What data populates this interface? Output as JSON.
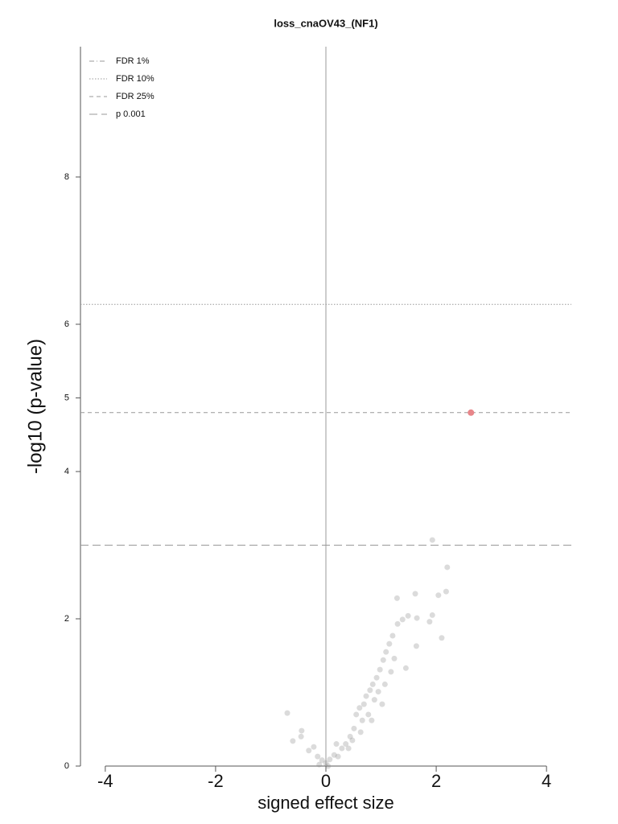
{
  "chart_data": {
    "type": "scatter",
    "title": "loss_cnaOV43_(NF1)",
    "xlabel": "signed effect size",
    "ylabel": "-log10 (p-value)",
    "xlim": [
      -4.45,
      4.45
    ],
    "ylim": [
      0,
      9.77
    ],
    "xticks": [
      -4,
      -2,
      0,
      2,
      4
    ],
    "yticks": [
      0,
      2,
      4,
      5,
      6,
      8
    ],
    "color": "#888888",
    "x": [
      -0.7,
      -0.44,
      -0.45,
      -0.6,
      -0.31,
      -0.22,
      -0.15,
      -0.07,
      0,
      0.07,
      0.15,
      0.22,
      0.29,
      0.36,
      0.44,
      0.51,
      0.55,
      0.61,
      0.69,
      0.73,
      0.8,
      0.85,
      0.92,
      0.98,
      1.04,
      1.09,
      1.15,
      1.21,
      1.3,
      1.29,
      1.39,
      1.49,
      1.62,
      1.65,
      1.64,
      1.45,
      1.93,
      1.88,
      1.93,
      2.04,
      2.2,
      2.18,
      2.1,
      0.04,
      -0.12,
      0.19,
      0.41,
      0.66,
      0.77,
      0.88,
      0.95,
      1.07,
      1.18,
      0.83,
      0.63,
      0.48,
      1.02,
      1.24
    ],
    "y": [
      0.72,
      0.48,
      0.4,
      0.34,
      0.21,
      0.26,
      0.13,
      0.08,
      0.04,
      0.09,
      0.15,
      0.13,
      0.24,
      0.3,
      0.4,
      0.51,
      0.7,
      0.79,
      0.84,
      0.95,
      1.03,
      1.11,
      1.2,
      1.31,
      1.44,
      1.55,
      1.66,
      1.77,
      1.93,
      2.28,
      1.99,
      2.04,
      2.34,
      2.01,
      1.63,
      1.33,
      3.07,
      1.96,
      2.05,
      2.32,
      2.7,
      2.37,
      1.74,
      0.0,
      0.02,
      0.3,
      0.24,
      0.62,
      0.7,
      0.9,
      1.01,
      1.11,
      1.28,
      0.62,
      0.46,
      0.35,
      0.84,
      1.46
    ],
    "highlight": {
      "x": 2.63,
      "y": 4.8,
      "color": "#e8868a"
    },
    "reference_lines": [
      {
        "name": "FDR 1%",
        "value": null,
        "style": "dashdot"
      },
      {
        "name": "FDR 10%",
        "value": 6.27,
        "style": "dotted"
      },
      {
        "name": "FDR 25%",
        "value": 4.8,
        "style": "dashed"
      },
      {
        "name": "p 0.001",
        "value": 3,
        "style": "longdash"
      }
    ]
  }
}
